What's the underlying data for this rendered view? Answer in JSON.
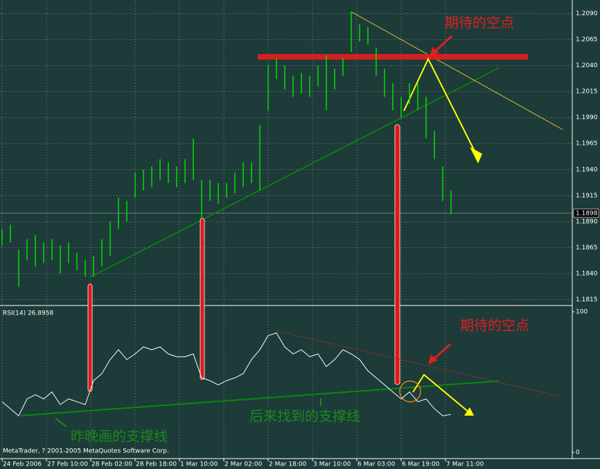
{
  "chart_data": [
    {
      "type": "hilo",
      "color": "#00e000",
      "grid": true,
      "xlim": [
        -0.75,
        205.75
      ],
      "ylim": [
        1.181,
        1.2103
      ],
      "yticks": [
        {
          "value": 1.209,
          "label": "1.2090"
        },
        1.2065,
        {
          "value": 1.204,
          "label": "1.2040"
        },
        1.2015,
        {
          "value": 1.199,
          "label": "1.1990"
        },
        1.1965,
        {
          "value": 1.194,
          "label": "1.1940"
        },
        1.1915,
        {
          "value": 1.189,
          "label": "1.1890"
        },
        1.1865,
        {
          "value": 1.184,
          "label": "1.1840"
        },
        1.1815
      ],
      "current_price": 1.1898,
      "annotations": [
        "期待的空点"
      ],
      "x": [
        0,
        3,
        6,
        9,
        12,
        15,
        18,
        21,
        24,
        27,
        30,
        33,
        36,
        39,
        42,
        45,
        48,
        51,
        54,
        57,
        60,
        63,
        66,
        69,
        72,
        75,
        78,
        81,
        84,
        87,
        90,
        93,
        96,
        99,
        102,
        105,
        108,
        111,
        114,
        117,
        120,
        123,
        126,
        129,
        132,
        135,
        138,
        141,
        144,
        147,
        150,
        153,
        156,
        159,
        162
      ],
      "high": [
        1.1883,
        1.1887,
        1.1863,
        1.1873,
        1.1877,
        1.187,
        1.1873,
        1.1867,
        1.187,
        1.186,
        1.1853,
        1.1857,
        1.1873,
        1.189,
        1.1913,
        1.191,
        1.1937,
        1.194,
        1.1943,
        1.195,
        1.1947,
        1.1943,
        1.195,
        1.197,
        1.193,
        1.193,
        1.1927,
        1.1927,
        1.1937,
        1.1947,
        1.1947,
        1.1983,
        1.204,
        1.2047,
        1.204,
        1.203,
        1.2033,
        1.203,
        1.204,
        1.205,
        1.2037,
        1.2047,
        1.2092,
        1.208,
        1.2077,
        1.2057,
        1.2037,
        1.2023,
        1.201,
        1.2023,
        1.2023,
        1.201,
        1.1977,
        1.1943,
        1.192
      ],
      "low": [
        1.1867,
        1.187,
        1.1827,
        1.1853,
        1.1847,
        1.185,
        1.1853,
        1.184,
        1.185,
        1.1843,
        1.1837,
        1.1837,
        1.1847,
        1.1857,
        1.1883,
        1.189,
        1.1913,
        1.192,
        1.1923,
        1.193,
        1.1927,
        1.1923,
        1.1927,
        1.193,
        1.1893,
        1.191,
        1.1907,
        1.1913,
        1.1917,
        1.1923,
        1.1927,
        1.192,
        1.1997,
        1.2027,
        1.2017,
        1.201,
        1.2013,
        1.201,
        1.202,
        1.1997,
        1.2017,
        1.203,
        1.2053,
        1.2063,
        1.206,
        1.203,
        1.201,
        1.1997,
        1.199,
        1.2003,
        1.1997,
        1.197,
        1.195,
        1.191,
        1.1897
      ]
    },
    {
      "type": "line",
      "title": "RSI(14) 26.8958",
      "color": "#ffffff",
      "xlim": [
        -0.75,
        205.75
      ],
      "ylim": [
        0,
        100
      ],
      "yticks": [
        0,
        100
      ],
      "xticks": [
        {
          "value": 0,
          "label": "24 Feb 2006"
        },
        {
          "value": 16,
          "label": "27 Feb 10:00"
        },
        {
          "value": 32,
          "label": "28 Feb 02:00"
        },
        {
          "value": 48,
          "label": "28 Feb 18:00"
        },
        {
          "value": 64,
          "label": "1 Mar 10:00"
        },
        {
          "value": 80,
          "label": "2 Mar 02:00"
        },
        {
          "value": 96,
          "label": "2 Mar 18:00"
        },
        {
          "value": 112,
          "label": "3 Mar 10:00"
        },
        {
          "value": 128,
          "label": "6 Mar 03:00"
        },
        {
          "value": 144,
          "label": "6 Mar 19:00"
        },
        {
          "value": 160,
          "label": "7 Mar 11:00"
        }
      ],
      "annotations": [
        "期待的空点",
        "后来找到的支撑线",
        "昨晚画的支撑线"
      ],
      "footer": "MetaTrader, ? 2001-2005 MetaQuotes Software Corp.",
      "x": [
        0,
        3,
        6,
        9,
        12,
        15,
        18,
        21,
        24,
        27,
        30,
        33,
        36,
        39,
        42,
        45,
        48,
        51,
        54,
        57,
        60,
        63,
        66,
        69,
        72,
        75,
        78,
        81,
        84,
        87,
        90,
        93,
        96,
        99,
        102,
        105,
        108,
        111,
        114,
        117,
        120,
        123,
        126,
        129,
        132,
        135,
        138,
        141,
        144,
        147,
        150,
        153,
        156,
        159,
        162
      ],
      "values": [
        36,
        31,
        26,
        38,
        41,
        38,
        43,
        34,
        38,
        36,
        34,
        51,
        56,
        66,
        73,
        66,
        70,
        75,
        73,
        75,
        70,
        68,
        68,
        70,
        53,
        51,
        48,
        51,
        53,
        56,
        66,
        73,
        83,
        85,
        75,
        70,
        73,
        68,
        70,
        61,
        66,
        73,
        70,
        66,
        58,
        53,
        48,
        43,
        38,
        43,
        36,
        38,
        31,
        26,
        27
      ]
    }
  ]
}
